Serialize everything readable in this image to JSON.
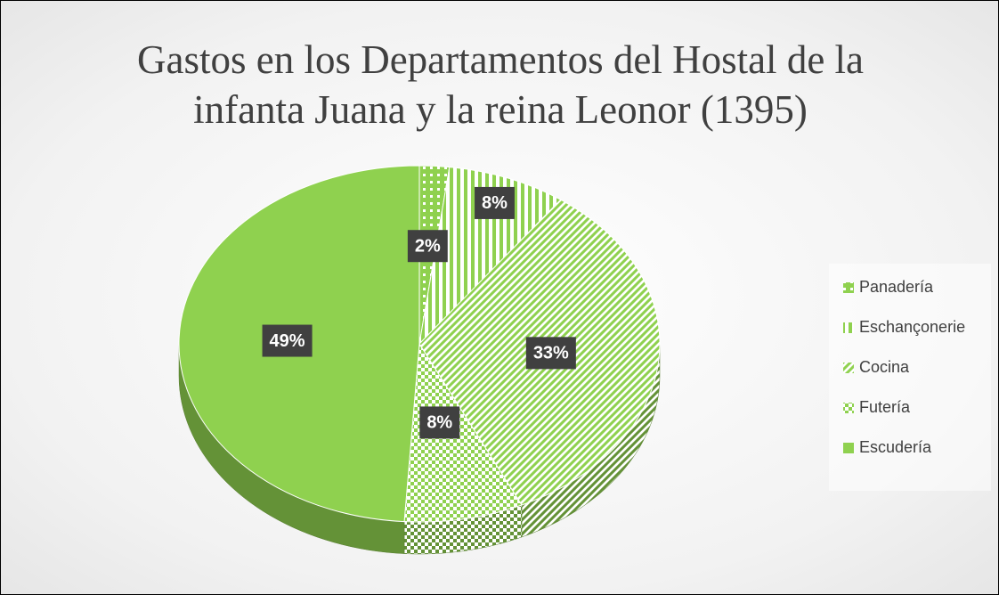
{
  "chart_data": {
    "type": "pie",
    "title": "Gastos en los Departamentos del Hostal de la infanta Juana y la reina Leonor (1395)",
    "categories": [
      "Panadería",
      "Eschançonerie",
      "Cocina",
      "Futería",
      "Escudería"
    ],
    "values": [
      2,
      8,
      33,
      8,
      49
    ],
    "value_labels": [
      "2%",
      "8%",
      "33%",
      "8%",
      "49%"
    ],
    "colors": [
      "#8fd14f",
      "#8fd14f",
      "#8fd14f",
      "#8fd14f",
      "#8fd14f"
    ],
    "legend": "right"
  }
}
